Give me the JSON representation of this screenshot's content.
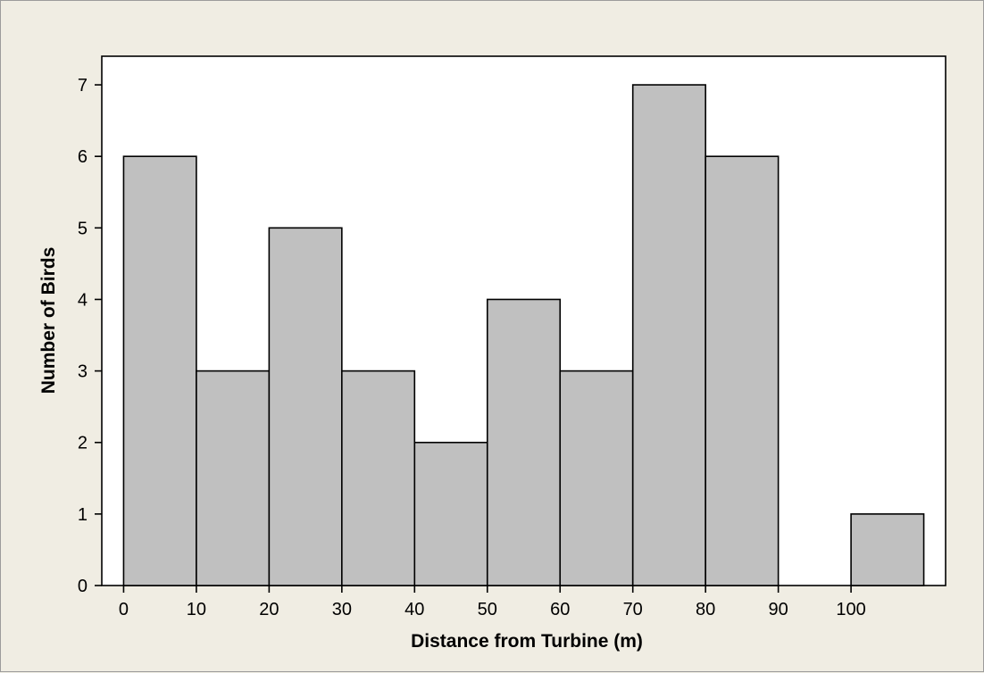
{
  "chart_data": {
    "type": "bar",
    "title": "",
    "xlabel": "Distance from Turbine (m)",
    "ylabel": "Number of Birds",
    "bins": [
      {
        "start": 0,
        "end": 10,
        "count": 6
      },
      {
        "start": 10,
        "end": 20,
        "count": 3
      },
      {
        "start": 20,
        "end": 30,
        "count": 5
      },
      {
        "start": 30,
        "end": 40,
        "count": 3
      },
      {
        "start": 40,
        "end": 50,
        "count": 2
      },
      {
        "start": 50,
        "end": 60,
        "count": 4
      },
      {
        "start": 60,
        "end": 70,
        "count": 3
      },
      {
        "start": 70,
        "end": 80,
        "count": 7
      },
      {
        "start": 80,
        "end": 90,
        "count": 6
      },
      {
        "start": 90,
        "end": 100,
        "count": 0
      },
      {
        "start": 100,
        "end": 110,
        "count": 1
      }
    ],
    "x_ticks": [
      0,
      10,
      20,
      30,
      40,
      50,
      60,
      70,
      80,
      90,
      100
    ],
    "y_ticks": [
      0,
      1,
      2,
      3,
      4,
      5,
      6,
      7
    ],
    "xlim": [
      -3,
      113
    ],
    "ylim": [
      0,
      7.4
    ],
    "grid": false,
    "colors": {
      "bar_fill": "#c0c0c0",
      "bar_edge": "#000000",
      "plot_bg": "#ffffff",
      "page_bg": "#f0ede3"
    }
  }
}
